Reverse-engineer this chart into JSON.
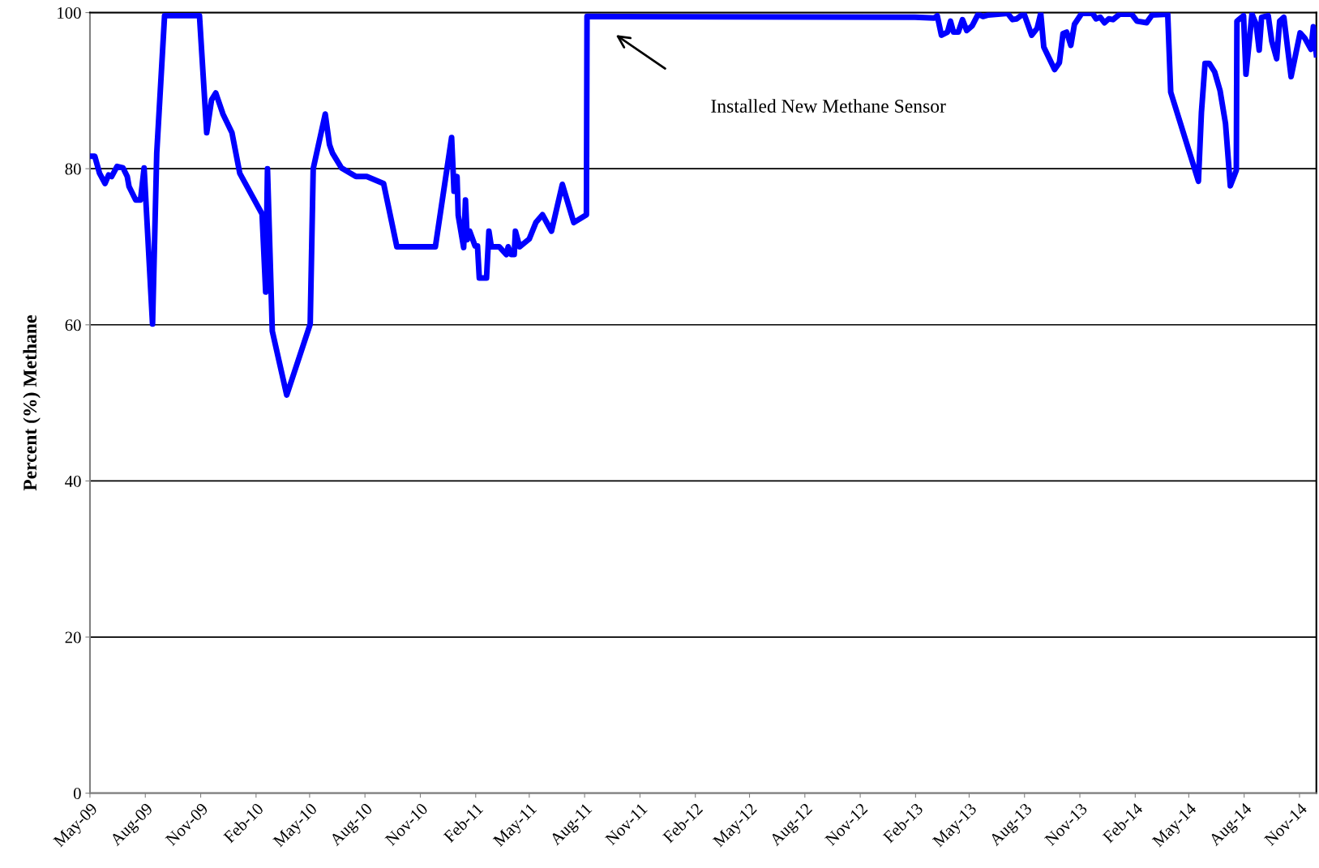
{
  "chart_data": {
    "type": "line",
    "ylabel": "Percent (%) Methane",
    "x": [
      "2009-05-01",
      "2009-05-09",
      "2009-05-17",
      "2009-05-26",
      "2009-06-01",
      "2009-06-06",
      "2009-06-15",
      "2009-06-25",
      "2009-07-02",
      "2009-07-05",
      "2009-07-16",
      "2009-07-24",
      "2009-07-30",
      "2009-08-13",
      "2009-08-20",
      "2009-09-02",
      "2009-10-30",
      "2009-11-11",
      "2009-11-19",
      "2009-11-26",
      "2009-12-08",
      "2009-12-23",
      "2010-01-05",
      "2010-02-11",
      "2010-02-17",
      "2010-02-20",
      "2010-02-28",
      "2010-03-24",
      "2010-05-02",
      "2010-05-07",
      "2010-05-27",
      "2010-06-03",
      "2010-06-08",
      "2010-06-23",
      "2010-07-17",
      "2010-08-04",
      "2010-09-01",
      "2010-09-23",
      "2010-11-26",
      "2010-12-23",
      "2010-12-27",
      "2011-01-01",
      "2011-01-03",
      "2011-01-12",
      "2011-01-15",
      "2011-01-18",
      "2011-01-22",
      "2011-01-31",
      "2011-02-04",
      "2011-02-07",
      "2011-02-19",
      "2011-02-23",
      "2011-02-27",
      "2011-03-12",
      "2011-03-24",
      "2011-03-27",
      "2011-04-01",
      "2011-04-06",
      "2011-04-08",
      "2011-04-15",
      "2011-05-01",
      "2011-05-12",
      "2011-05-23",
      "2011-06-07",
      "2011-06-25",
      "2011-07-14",
      "2011-08-04",
      "2011-08-05",
      "2013-01-31",
      "2013-03-04",
      "2013-03-09",
      "2013-03-16",
      "2013-03-26",
      "2013-03-31",
      "2013-04-05",
      "2013-04-13",
      "2013-04-20",
      "2013-04-27",
      "2013-05-06",
      "2013-05-16",
      "2013-05-24",
      "2013-06-02",
      "2013-07-04",
      "2013-07-12",
      "2013-07-19",
      "2013-07-31",
      "2013-08-13",
      "2013-08-22",
      "2013-08-28",
      "2013-09-02",
      "2013-09-20",
      "2013-09-28",
      "2013-10-04",
      "2013-10-10",
      "2013-10-17",
      "2013-10-23",
      "2013-11-04",
      "2013-11-22",
      "2013-11-28",
      "2013-12-05",
      "2013-12-12",
      "2013-12-19",
      "2013-12-26",
      "2014-01-06",
      "2014-01-26",
      "2014-02-04",
      "2014-02-20",
      "2014-03-01",
      "2014-03-27",
      "2014-04-01",
      "2014-05-17",
      "2014-05-22",
      "2014-05-28",
      "2014-06-04",
      "2014-06-13",
      "2014-06-22",
      "2014-07-01",
      "2014-07-09",
      "2014-07-19",
      "2014-07-20",
      "2014-07-31",
      "2014-08-04",
      "2014-08-14",
      "2014-08-21",
      "2014-08-26",
      "2014-08-30",
      "2014-09-10",
      "2014-09-16",
      "2014-09-24",
      "2014-09-29",
      "2014-10-06",
      "2014-10-18",
      "2014-11-02",
      "2014-11-10",
      "2014-11-20",
      "2014-11-24",
      "2014-11-29"
    ],
    "series": [
      {
        "color": "#0000ff",
        "values": [
          81.6,
          81.6,
          79.4,
          78.1,
          79.2,
          79,
          80.3,
          80.1,
          79,
          77.7,
          76,
          76,
          80.1,
          60.1,
          82,
          99.6,
          99.6,
          84.6,
          88.8,
          89.7,
          87,
          84.6,
          79.4,
          74.2,
          64.2,
          80,
          59.2,
          51,
          60.1,
          80,
          87,
          83.1,
          82,
          80.1,
          79,
          79,
          78.1,
          70,
          70,
          84,
          77.1,
          79,
          74,
          69.9,
          76,
          70.9,
          72,
          70.1,
          70.1,
          66,
          66,
          72,
          70,
          70,
          69,
          70,
          69,
          69,
          72,
          70,
          71,
          73.1,
          74.1,
          72,
          78,
          73.1,
          74.1,
          99.5,
          99.4,
          99.3,
          99.6,
          97.1,
          97.5,
          98.9,
          97.5,
          97.5,
          99.1,
          97.7,
          98.3,
          99.8,
          99.5,
          99.7,
          99.9,
          99.1,
          99.2,
          99.9,
          97.1,
          98,
          99.9,
          95.6,
          92.7,
          93.6,
          97.3,
          97.5,
          95.8,
          98.5,
          99.9,
          99.9,
          99.2,
          99.4,
          98.7,
          99.2,
          99.1,
          99.8,
          99.8,
          98.9,
          98.7,
          99.7,
          99.8,
          89.8,
          78.4,
          87.2,
          93.5,
          93.5,
          92.4,
          90,
          85.8,
          77.8,
          79.8,
          98.9,
          99.6,
          92.1,
          99.8,
          98.5,
          95.2,
          99.4,
          99.6,
          96.3,
          94.1,
          98.9,
          99.4,
          91.8,
          97.4,
          96.7,
          95.3,
          98.2,
          94.6
        ]
      }
    ],
    "xlim": [
      "2009-05-01",
      "2014-11-29"
    ],
    "xticks": [
      {
        "value": "2009-05-01",
        "label": "May-09"
      },
      {
        "value": "2009-08-01",
        "label": "Aug-09"
      },
      {
        "value": "2009-11-01",
        "label": "Nov-09"
      },
      {
        "value": "2010-02-01",
        "label": "Feb-10"
      },
      {
        "value": "2010-05-01",
        "label": "May-10"
      },
      {
        "value": "2010-08-01",
        "label": "Aug-10"
      },
      {
        "value": "2010-11-01",
        "label": "Nov-10"
      },
      {
        "value": "2011-02-01",
        "label": "Feb-11"
      },
      {
        "value": "2011-05-01",
        "label": "May-11"
      },
      {
        "value": "2011-08-01",
        "label": "Aug-11"
      },
      {
        "value": "2011-11-01",
        "label": "Nov-11"
      },
      {
        "value": "2012-02-01",
        "label": "Feb-12"
      },
      {
        "value": "2012-05-01",
        "label": "May-12"
      },
      {
        "value": "2012-08-01",
        "label": "Aug-12"
      },
      {
        "value": "2012-11-01",
        "label": "Nov-12"
      },
      {
        "value": "2013-02-01",
        "label": "Feb-13"
      },
      {
        "value": "2013-05-01",
        "label": "May-13"
      },
      {
        "value": "2013-08-01",
        "label": "Aug-13"
      },
      {
        "value": "2013-11-01",
        "label": "Nov-13"
      },
      {
        "value": "2014-02-01",
        "label": "Feb-14"
      },
      {
        "value": "2014-05-01",
        "label": "May-14"
      },
      {
        "value": "2014-08-01",
        "label": "Aug-14"
      },
      {
        "value": "2014-11-01",
        "label": "Nov-14"
      }
    ],
    "ylim": [
      0,
      100
    ],
    "yticks": [
      0,
      20,
      40,
      60,
      80,
      100
    ],
    "grid": "y",
    "marker": "none",
    "line_style": "solid",
    "annotations": [
      "Installed New Methane Sensor"
    ]
  }
}
